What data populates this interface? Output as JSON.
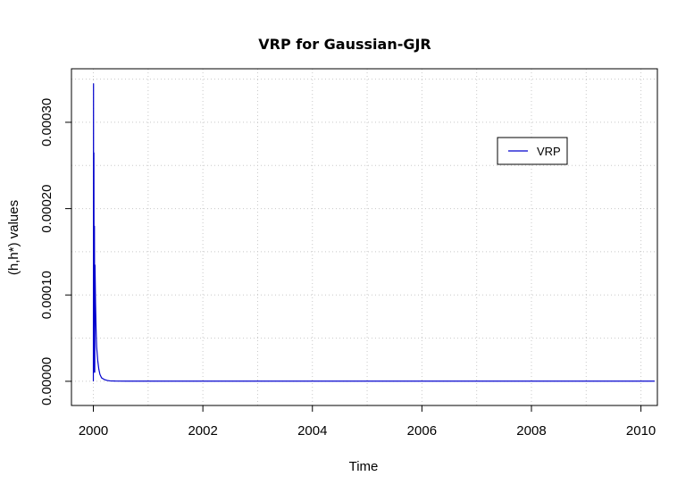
{
  "chart_data": {
    "type": "line",
    "title": "VRP for Gaussian-GJR",
    "xlabel": "Time",
    "ylabel": "(h,h*) values",
    "xlim": [
      1999.6,
      2010.3
    ],
    "ylim": [
      -2.8e-05,
      0.000362
    ],
    "x_ticks": [
      2000,
      2002,
      2004,
      2006,
      2008,
      2010
    ],
    "x_tick_labels": [
      "2000",
      "2002",
      "2004",
      "2006",
      "2008",
      "2010"
    ],
    "y_ticks": [
      0.0,
      0.0001,
      0.0002,
      0.0003
    ],
    "y_tick_labels": [
      "0.00000",
      "0.00010",
      "0.00020",
      "0.00030"
    ],
    "grid": true,
    "legend": {
      "position": "top-right",
      "entries": [
        "VRP"
      ]
    },
    "series": [
      {
        "name": "VRP",
        "color": "#0000CD",
        "x": [
          2000.0,
          2000.003,
          2000.006,
          2000.01,
          2000.015,
          2000.02,
          2000.025,
          2000.03,
          2000.04,
          2000.05,
          2000.06,
          2000.08,
          2000.1,
          2000.12,
          2000.15,
          2000.2,
          2000.25,
          2000.3,
          2000.4,
          2000.6,
          2001,
          2002,
          2004,
          2006,
          2008,
          2010,
          2010.25
        ],
        "y": [
          0.0,
          0.000345,
          1e-05,
          0.000265,
          2e-05,
          0.00018,
          1e-05,
          0.000135,
          9e-05,
          6e-05,
          4e-05,
          2.4e-05,
          1.4e-05,
          8e-06,
          4e-06,
          2e-06,
          1e-06,
          5e-07,
          3e-07,
          2e-07,
          2e-07,
          2e-07,
          2e-07,
          2e-07,
          2e-07,
          2e-07,
          2e-07
        ]
      }
    ]
  }
}
